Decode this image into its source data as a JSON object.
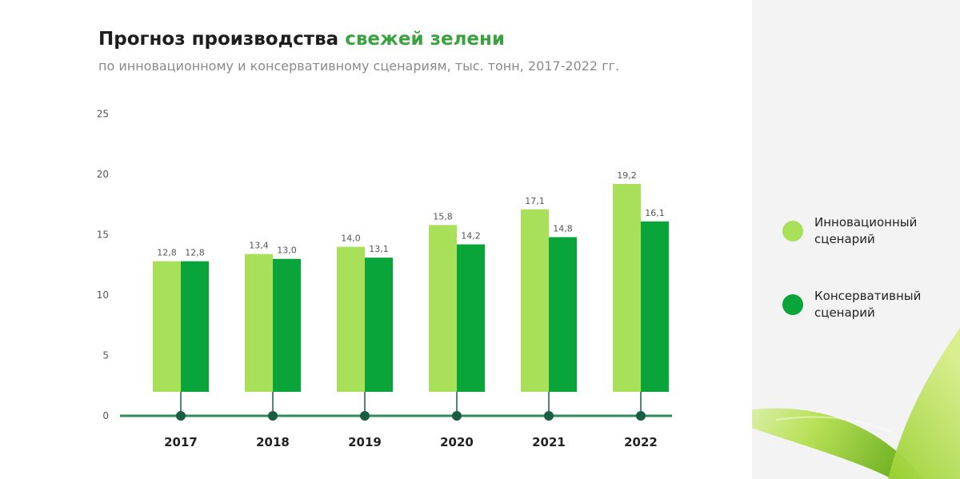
{
  "title": {
    "main": "Прогноз производства",
    "accent": "свежей зелени"
  },
  "subtitle": "по инновационному и консервативному сценариям, тыс. тонн, 2017-2022 гг.",
  "colors": {
    "innovation": "#a8e05a",
    "conservative": "#09a43a",
    "axis": "#2e8b57",
    "marker": "#1a5c45",
    "accent_title": "#3aa33f"
  },
  "legend": [
    {
      "label": "Инновационный сценарий",
      "color": "#a8e05a"
    },
    {
      "label": "Консервативный сценарий",
      "color": "#09a43a"
    }
  ],
  "chart_data": {
    "type": "bar",
    "categories": [
      "2017",
      "2018",
      "2019",
      "2020",
      "2021",
      "2022"
    ],
    "series": [
      {
        "name": "Инновационный сценарий",
        "values": [
          12.8,
          13.4,
          14.0,
          15.8,
          17.1,
          19.2
        ],
        "labels": [
          "12,8",
          "13,4",
          "14,0",
          "15,8",
          "17,1",
          "19,2"
        ]
      },
      {
        "name": "Консервативный сценарий",
        "values": [
          12.8,
          13.0,
          13.1,
          14.2,
          14.8,
          16.1
        ],
        "labels": [
          "12,8",
          "13,0",
          "13,1",
          "14,2",
          "14,8",
          "16,1"
        ]
      }
    ],
    "yticks": [
      "0",
      "5",
      "10",
      "15",
      "20",
      "25"
    ],
    "ylim": [
      0,
      25
    ],
    "grid": false,
    "legend_position": "right"
  }
}
